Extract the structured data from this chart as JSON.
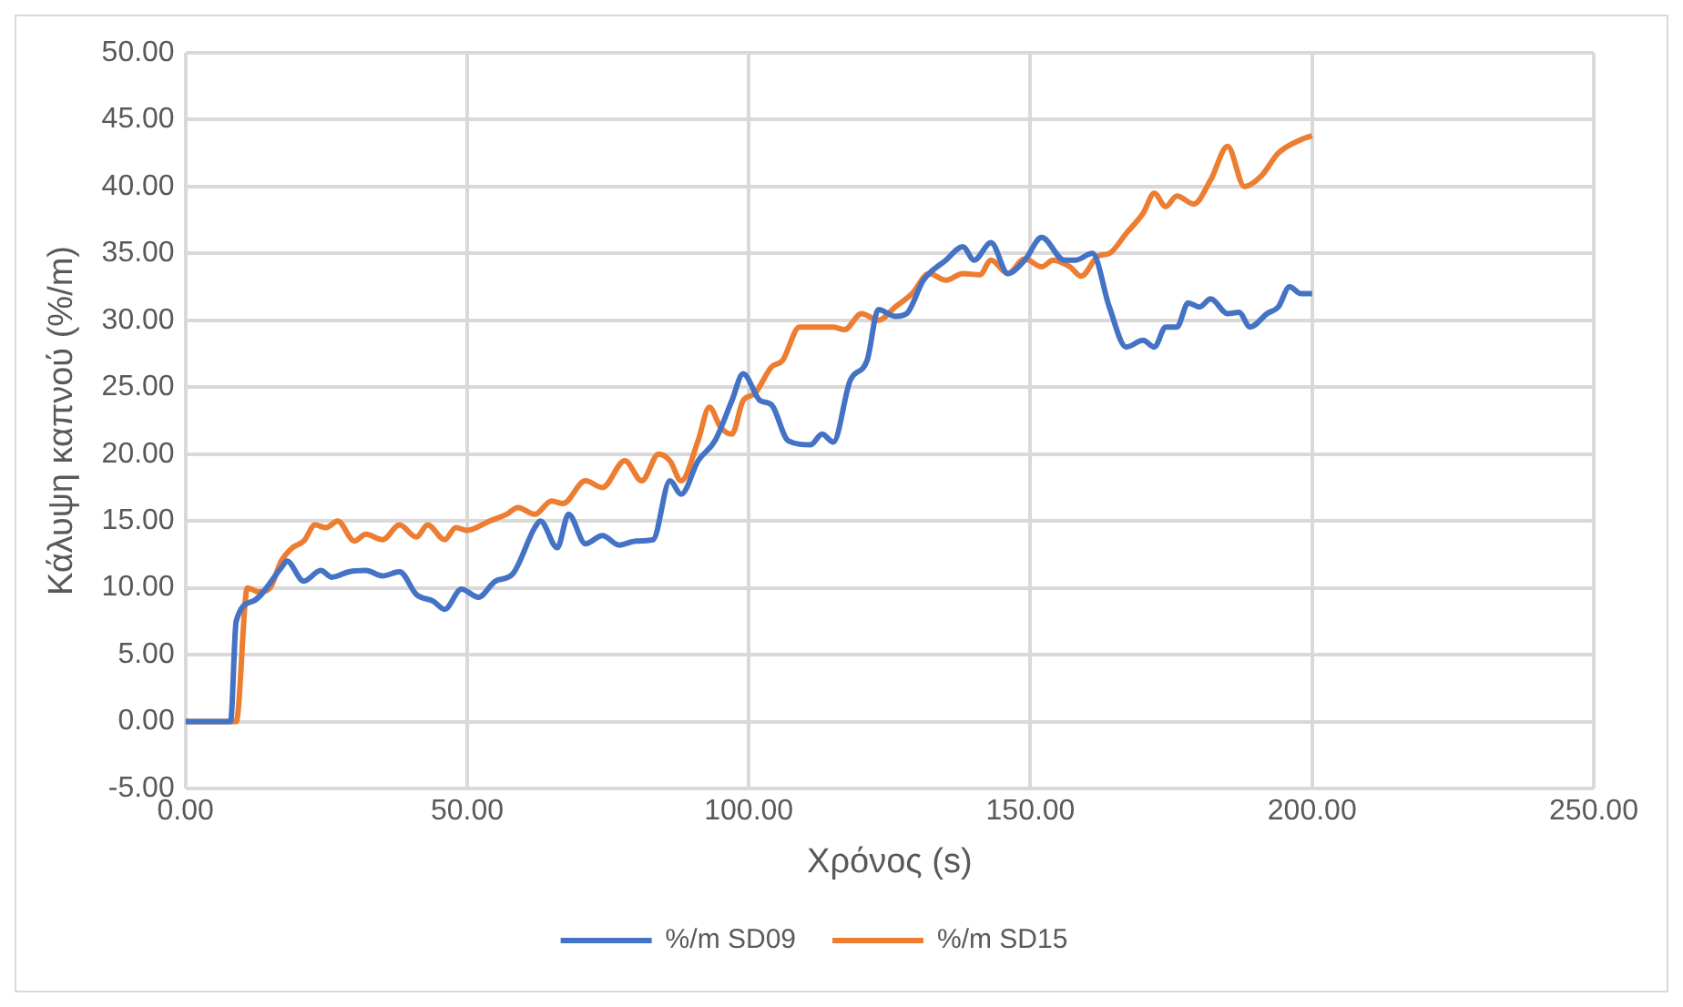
{
  "chart_data": {
    "type": "line",
    "xlabel": "Χρόνος (s)",
    "ylabel": "Κάλυψη καπνού (%/m)",
    "xlim": [
      0,
      250
    ],
    "ylim": [
      -5,
      50
    ],
    "xticks": [
      {
        "value": 0,
        "label": "0.00"
      },
      {
        "value": 50,
        "label": "50.00"
      },
      {
        "value": 100,
        "label": "100.00"
      },
      {
        "value": 150,
        "label": "150.00"
      },
      {
        "value": 200,
        "label": "200.00"
      },
      {
        "value": 250,
        "label": "250.00"
      }
    ],
    "yticks": [
      {
        "value": -5,
        "label": "-5.00"
      },
      {
        "value": 0,
        "label": "0.00"
      },
      {
        "value": 5,
        "label": "5.00"
      },
      {
        "value": 10,
        "label": "10.00"
      },
      {
        "value": 15,
        "label": "15.00"
      },
      {
        "value": 20,
        "label": "20.00"
      },
      {
        "value": 25,
        "label": "25.00"
      },
      {
        "value": 30,
        "label": "30.00"
      },
      {
        "value": 35,
        "label": "35.00"
      },
      {
        "value": 40,
        "label": "40.00"
      },
      {
        "value": 45,
        "label": "45.00"
      },
      {
        "value": 50,
        "label": "50.00"
      }
    ],
    "grid": true,
    "legend": "bottom",
    "series": [
      {
        "name": "%/m SD09",
        "color": "#4472c4",
        "x": [
          0,
          4,
          8,
          9,
          12,
          17,
          18,
          21,
          24,
          26,
          29,
          32,
          35,
          38,
          41,
          44,
          46,
          49,
          52,
          55,
          58,
          62,
          63,
          66,
          68,
          71,
          74,
          77,
          80,
          83,
          86,
          88,
          91,
          94,
          97,
          99,
          102,
          104,
          107,
          111,
          113,
          115,
          118,
          121,
          123,
          126,
          128,
          131,
          135,
          138,
          140,
          143,
          146,
          149,
          152,
          156,
          158,
          161,
          164,
          167,
          170,
          172,
          174,
          176,
          178,
          180,
          182,
          185,
          187,
          189,
          192,
          194,
          196,
          198,
          200
        ],
        "values": [
          0,
          0,
          0,
          7.5,
          9,
          11.5,
          12,
          10.5,
          11.3,
          10.8,
          11.2,
          11.3,
          10.9,
          11.2,
          9.5,
          9,
          8.4,
          9.9,
          9.3,
          10.5,
          11,
          14.5,
          15,
          13,
          15.5,
          13.3,
          13.9,
          13.2,
          13.5,
          13.6,
          18,
          17,
          19.5,
          21,
          24,
          26,
          24,
          23.7,
          21,
          20.7,
          21.5,
          20.9,
          25.5,
          27,
          30.8,
          30.3,
          30.5,
          33,
          34.5,
          35.5,
          34.5,
          35.8,
          33.5,
          34.5,
          36.2,
          34.5,
          34.5,
          35,
          31,
          28,
          28.5,
          28,
          29.5,
          29.5,
          31.3,
          31,
          31.6,
          30.5,
          30.6,
          29.5,
          30.5,
          31,
          32.5,
          32,
          32
        ]
      },
      {
        "name": "%/m SD15",
        "color": "#ed7d31",
        "x": [
          0,
          4,
          9,
          11,
          13,
          15,
          17,
          19,
          21,
          23,
          25,
          27,
          30,
          32,
          35,
          38,
          41,
          43,
          46,
          48,
          50,
          54,
          57,
          59,
          62,
          65,
          67,
          71,
          74,
          78,
          81,
          84,
          86,
          88,
          91,
          93,
          95,
          97,
          99,
          101,
          104,
          106,
          109,
          112,
          115,
          117,
          120,
          123,
          126,
          129,
          132,
          135,
          138,
          141,
          143,
          146,
          149,
          152,
          154,
          157,
          159,
          162,
          164,
          167,
          170,
          172,
          174,
          176,
          179,
          182,
          185,
          188,
          191,
          194,
          198,
          200
        ],
        "values": [
          0,
          0,
          0,
          10,
          9.7,
          10,
          12,
          13,
          13.5,
          14.7,
          14.5,
          15,
          13.5,
          14,
          13.6,
          14.7,
          13.8,
          14.7,
          13.6,
          14.5,
          14.3,
          15,
          15.5,
          16,
          15.5,
          16.5,
          16.3,
          18,
          17.5,
          19.5,
          18,
          20,
          19.5,
          18,
          21,
          23.5,
          22,
          21.5,
          24,
          24.5,
          26.5,
          27,
          29.5,
          29.5,
          29.5,
          29.3,
          30.5,
          30,
          31,
          32,
          33.5,
          33,
          33.5,
          33.4,
          34.5,
          33.5,
          34.6,
          34,
          34.5,
          34,
          33.3,
          34.8,
          35,
          36.5,
          38,
          39.5,
          38.5,
          39.3,
          38.7,
          40.5,
          43,
          40,
          40.8,
          42.5,
          43.5,
          43.8
        ]
      }
    ]
  }
}
